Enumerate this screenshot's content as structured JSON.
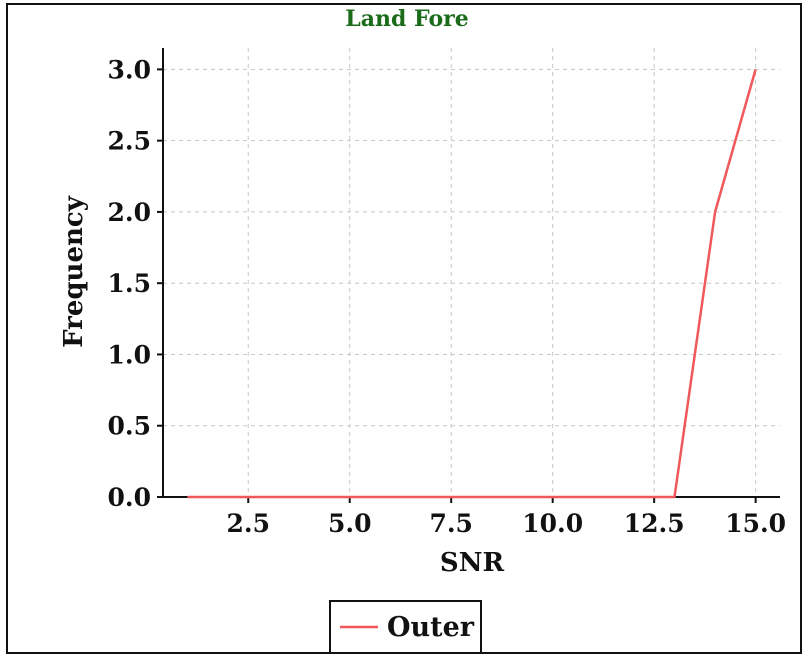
{
  "chart_data": {
    "type": "line",
    "title": "Land Fore",
    "title_color": "#1a6b1a",
    "xlabel": "SNR",
    "ylabel": "Frequency",
    "xlim": [
      0.4,
      15.6
    ],
    "ylim": [
      0,
      3.15
    ],
    "x_ticks": [
      "2.5",
      "5.0",
      "7.5",
      "10.0",
      "12.5",
      "15.0"
    ],
    "x_tick_values": [
      2.5,
      5.0,
      7.5,
      10.0,
      12.5,
      15.0
    ],
    "y_ticks": [
      "0.0",
      "0.5",
      "1.0",
      "1.5",
      "2.0",
      "2.5",
      "3.0"
    ],
    "y_tick_values": [
      0.0,
      0.5,
      1.0,
      1.5,
      2.0,
      2.5,
      3.0
    ],
    "grid": true,
    "legend_position": "bottom-center",
    "series": [
      {
        "name": "Outer",
        "color": "#f0585a",
        "x": [
          1,
          2,
          3,
          4,
          5,
          6,
          7,
          8,
          9,
          10,
          11,
          12,
          13,
          14,
          15
        ],
        "y": [
          0,
          0,
          0,
          0,
          0,
          0,
          0,
          0,
          0,
          0,
          0,
          0,
          0,
          2,
          3
        ]
      }
    ]
  }
}
